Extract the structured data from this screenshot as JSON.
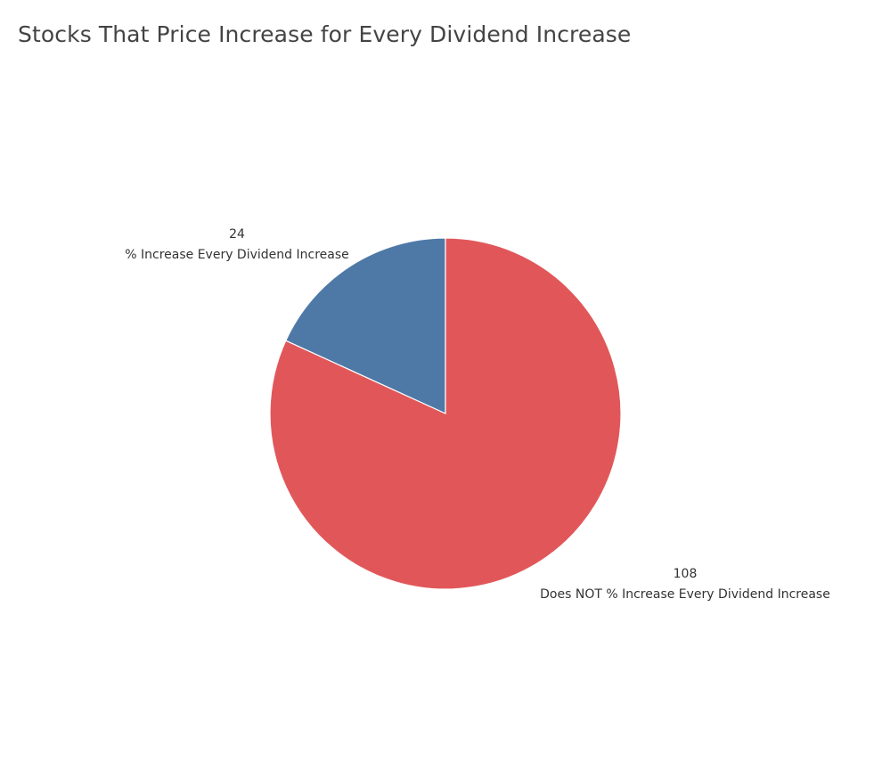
{
  "chart_data": {
    "type": "pie",
    "title": "Stocks That Price Increase for Every Dividend Increase",
    "categories": [
      "% Increase Every Dividend Increase",
      "Does NOT % Increase Every Dividend Increase"
    ],
    "values": [
      24,
      108
    ],
    "value_labels": [
      "24",
      "108"
    ],
    "colors": [
      "#4e79a7",
      "#e15759"
    ],
    "start": "12 o'clock, counter-clockwise for first slice",
    "legend": "none"
  }
}
